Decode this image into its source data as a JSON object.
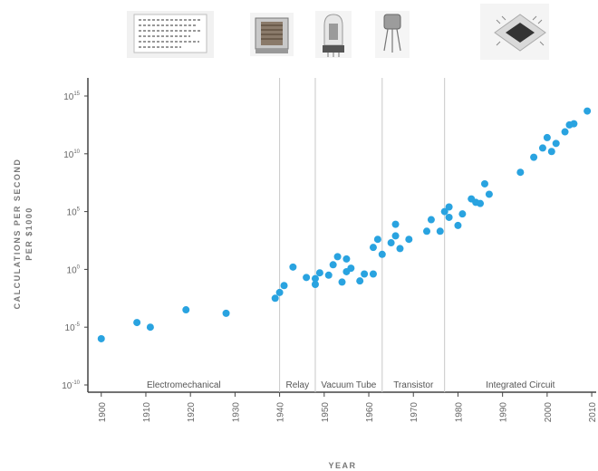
{
  "chart_data": {
    "type": "scatter",
    "title": "",
    "xlabel": "YEAR",
    "ylabel": [
      "CALCULATIONS PER SECOND",
      "PER $1000"
    ],
    "xlim": [
      1897,
      2011
    ],
    "ylim_log10": [
      -10,
      15
    ],
    "y_scale": "log",
    "x_ticks": [
      1900,
      1910,
      1920,
      1930,
      1940,
      1950,
      1960,
      1970,
      1980,
      1990,
      2000,
      2010
    ],
    "y_ticks_exp": [
      15,
      10,
      5,
      0,
      -5,
      -10
    ],
    "y_tick_base": "10",
    "grid": false,
    "eras": [
      {
        "label": "Electromechanical",
        "start": 1897,
        "end": 1940
      },
      {
        "label": "Relay",
        "start": 1940,
        "end": 1948
      },
      {
        "label": "Vacuum Tube",
        "start": 1948,
        "end": 1963
      },
      {
        "label": "Transistor",
        "start": 1963,
        "end": 1977
      },
      {
        "label": "Integrated Circuit",
        "start": 1977,
        "end": 2011
      }
    ],
    "color": "#29a3e0",
    "points": [
      {
        "x": 1900,
        "y": -6.0
      },
      {
        "x": 1908,
        "y": -4.6
      },
      {
        "x": 1911,
        "y": -5.0
      },
      {
        "x": 1919,
        "y": -3.5
      },
      {
        "x": 1928,
        "y": -3.8
      },
      {
        "x": 1939,
        "y": -2.5
      },
      {
        "x": 1940,
        "y": -2.0
      },
      {
        "x": 1941,
        "y": -1.4
      },
      {
        "x": 1943,
        "y": 0.2
      },
      {
        "x": 1946,
        "y": -0.7
      },
      {
        "x": 1948,
        "y": -1.3
      },
      {
        "x": 1948,
        "y": -0.8
      },
      {
        "x": 1949,
        "y": -0.3
      },
      {
        "x": 1951,
        "y": -0.5
      },
      {
        "x": 1952,
        "y": 0.4
      },
      {
        "x": 1953,
        "y": 1.1
      },
      {
        "x": 1954,
        "y": -1.1
      },
      {
        "x": 1955,
        "y": 0.9
      },
      {
        "x": 1955,
        "y": -0.2
      },
      {
        "x": 1956,
        "y": 0.1
      },
      {
        "x": 1958,
        "y": -1.0
      },
      {
        "x": 1959,
        "y": -0.4
      },
      {
        "x": 1961,
        "y": -0.4
      },
      {
        "x": 1961,
        "y": 1.9
      },
      {
        "x": 1962,
        "y": 2.6
      },
      {
        "x": 1963,
        "y": 1.3
      },
      {
        "x": 1965,
        "y": 2.3
      },
      {
        "x": 1966,
        "y": 2.9
      },
      {
        "x": 1966,
        "y": 3.9
      },
      {
        "x": 1967,
        "y": 1.8
      },
      {
        "x": 1969,
        "y": 2.6
      },
      {
        "x": 1973,
        "y": 3.3
      },
      {
        "x": 1974,
        "y": 4.3
      },
      {
        "x": 1976,
        "y": 3.3
      },
      {
        "x": 1977,
        "y": 5.0
      },
      {
        "x": 1978,
        "y": 4.5
      },
      {
        "x": 1978,
        "y": 5.4
      },
      {
        "x": 1980,
        "y": 3.8
      },
      {
        "x": 1981,
        "y": 4.8
      },
      {
        "x": 1983,
        "y": 6.1
      },
      {
        "x": 1984,
        "y": 5.8
      },
      {
        "x": 1985,
        "y": 5.7
      },
      {
        "x": 1986,
        "y": 7.4
      },
      {
        "x": 1987,
        "y": 6.5
      },
      {
        "x": 1994,
        "y": 8.4
      },
      {
        "x": 1997,
        "y": 9.7
      },
      {
        "x": 1999,
        "y": 10.5
      },
      {
        "x": 2000,
        "y": 11.4
      },
      {
        "x": 2001,
        "y": 10.2
      },
      {
        "x": 2002,
        "y": 10.9
      },
      {
        "x": 2004,
        "y": 11.9
      },
      {
        "x": 2005,
        "y": 12.5
      },
      {
        "x": 2006,
        "y": 12.6
      },
      {
        "x": 2009,
        "y": 13.7
      }
    ]
  },
  "era_images": [
    {
      "icon": "punch-card-icon"
    },
    {
      "icon": "relay-icon"
    },
    {
      "icon": "vacuum-tube-icon"
    },
    {
      "icon": "transistor-icon"
    },
    {
      "icon": "integrated-circuit-icon"
    }
  ]
}
